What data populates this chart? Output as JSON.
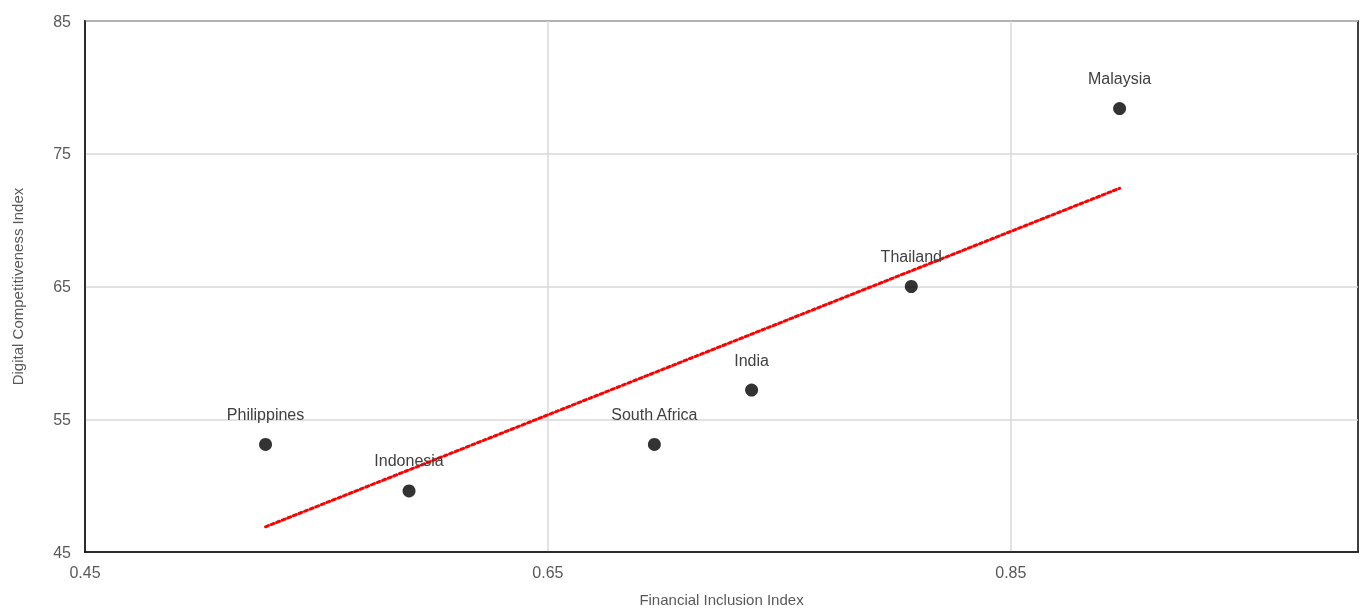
{
  "chart_data": {
    "type": "scatter",
    "xlabel": "Financial Inclusion Index",
    "ylabel": "Digital Competitiveness Index",
    "xlim": [
      0.45,
      1.0
    ],
    "xticks": [
      0.45,
      0.65,
      0.85
    ],
    "ylim": [
      45,
      85
    ],
    "yticks": [
      45,
      55,
      65,
      75,
      85
    ],
    "grid": true,
    "marker": "circle",
    "series": [
      {
        "color": "#000000",
        "x": [
          0.528,
          0.59,
          0.696,
          0.738,
          0.807,
          0.897
        ],
        "values": [
          53.1,
          49.6,
          53.1,
          57.2,
          65.0,
          78.4
        ]
      },
      {
        "type": "line",
        "color": "#ff0000",
        "line_style": "dotted",
        "marker": "none",
        "x": [
          0.528,
          0.897
        ],
        "values": [
          46.9,
          72.4
        ]
      }
    ],
    "annotations": [
      {
        "text": "Philippines",
        "x": 0.528,
        "y": 53.1
      },
      {
        "text": "Indonesia",
        "x": 0.59,
        "y": 49.6
      },
      {
        "text": "South Africa",
        "x": 0.696,
        "y": 53.1
      },
      {
        "text": "India",
        "x": 0.738,
        "y": 57.2
      },
      {
        "text": "Thailand",
        "x": 0.807,
        "y": 65.0
      },
      {
        "text": "Malaysia",
        "x": 0.897,
        "y": 78.4
      }
    ]
  }
}
